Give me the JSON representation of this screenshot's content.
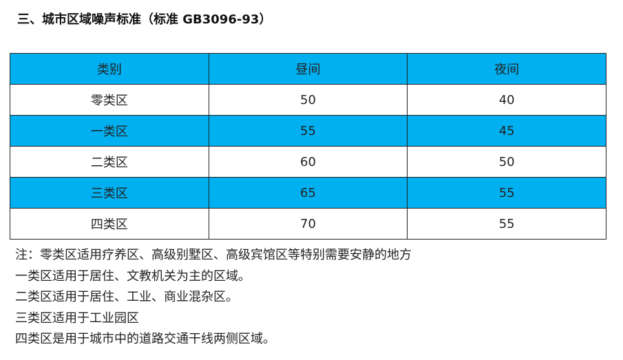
{
  "title": "三、城市区域噪声标准（标准 GB3096-93）",
  "table": {
    "headers": [
      "类别",
      "昼间",
      "夜间"
    ],
    "rows": [
      [
        "零类区",
        "50",
        "40"
      ],
      [
        "一类区",
        "55",
        "45"
      ],
      [
        "二类区",
        "60",
        "50"
      ],
      [
        "三类区",
        "65",
        "55"
      ],
      [
        "四类区",
        "70",
        "55"
      ]
    ],
    "highlight_color": "#00B0F0"
  },
  "notes": [
    "注：零类区适用疗养区、高级别墅区、高级宾馆区等特别需要安静的地方",
    "一类区适用于居住、文教机关为主的区域。",
    "二类区适用于居住、工业、商业混杂区。",
    "三类区适用于工业园区",
    "四类区是用于城市中的道路交通干线两侧区域。"
  ]
}
